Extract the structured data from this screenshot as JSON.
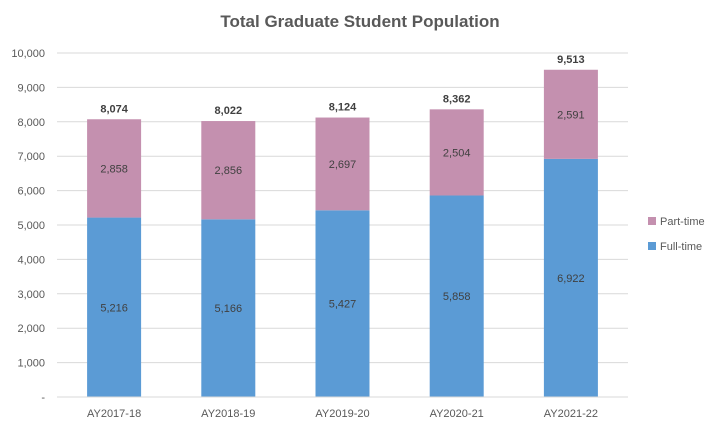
{
  "chart_data": {
    "type": "bar",
    "stacked": true,
    "title": "Total Graduate Student Population",
    "xlabel": "",
    "ylabel": "",
    "categories": [
      "AY2017-18",
      "AY2018-19",
      "AY2019-20",
      "AY2020-21",
      "AY2021-22"
    ],
    "series": [
      {
        "name": "Full-time",
        "color": "#5B9BD5",
        "values": [
          5216,
          5166,
          5427,
          5858,
          6922
        ],
        "labels": [
          "5,216",
          "5,166",
          "5,427",
          "5,858",
          "6,922"
        ]
      },
      {
        "name": "Part-time",
        "color": "#C490AF",
        "values": [
          2858,
          2856,
          2697,
          2504,
          2591
        ],
        "labels": [
          "2,858",
          "2,856",
          "2,697",
          "2,504",
          "2,591"
        ]
      }
    ],
    "totals": [
      "8,074",
      "8,022",
      "8,124",
      "8,362",
      "9,513"
    ],
    "ylim": [
      0,
      10000
    ],
    "yticks": [
      "-",
      "1,000",
      "2,000",
      "3,000",
      "4,000",
      "5,000",
      "6,000",
      "7,000",
      "8,000",
      "9,000",
      "10,000"
    ],
    "grid": true,
    "legend_position": "right",
    "legend": [
      "Part-time",
      "Full-time"
    ]
  }
}
